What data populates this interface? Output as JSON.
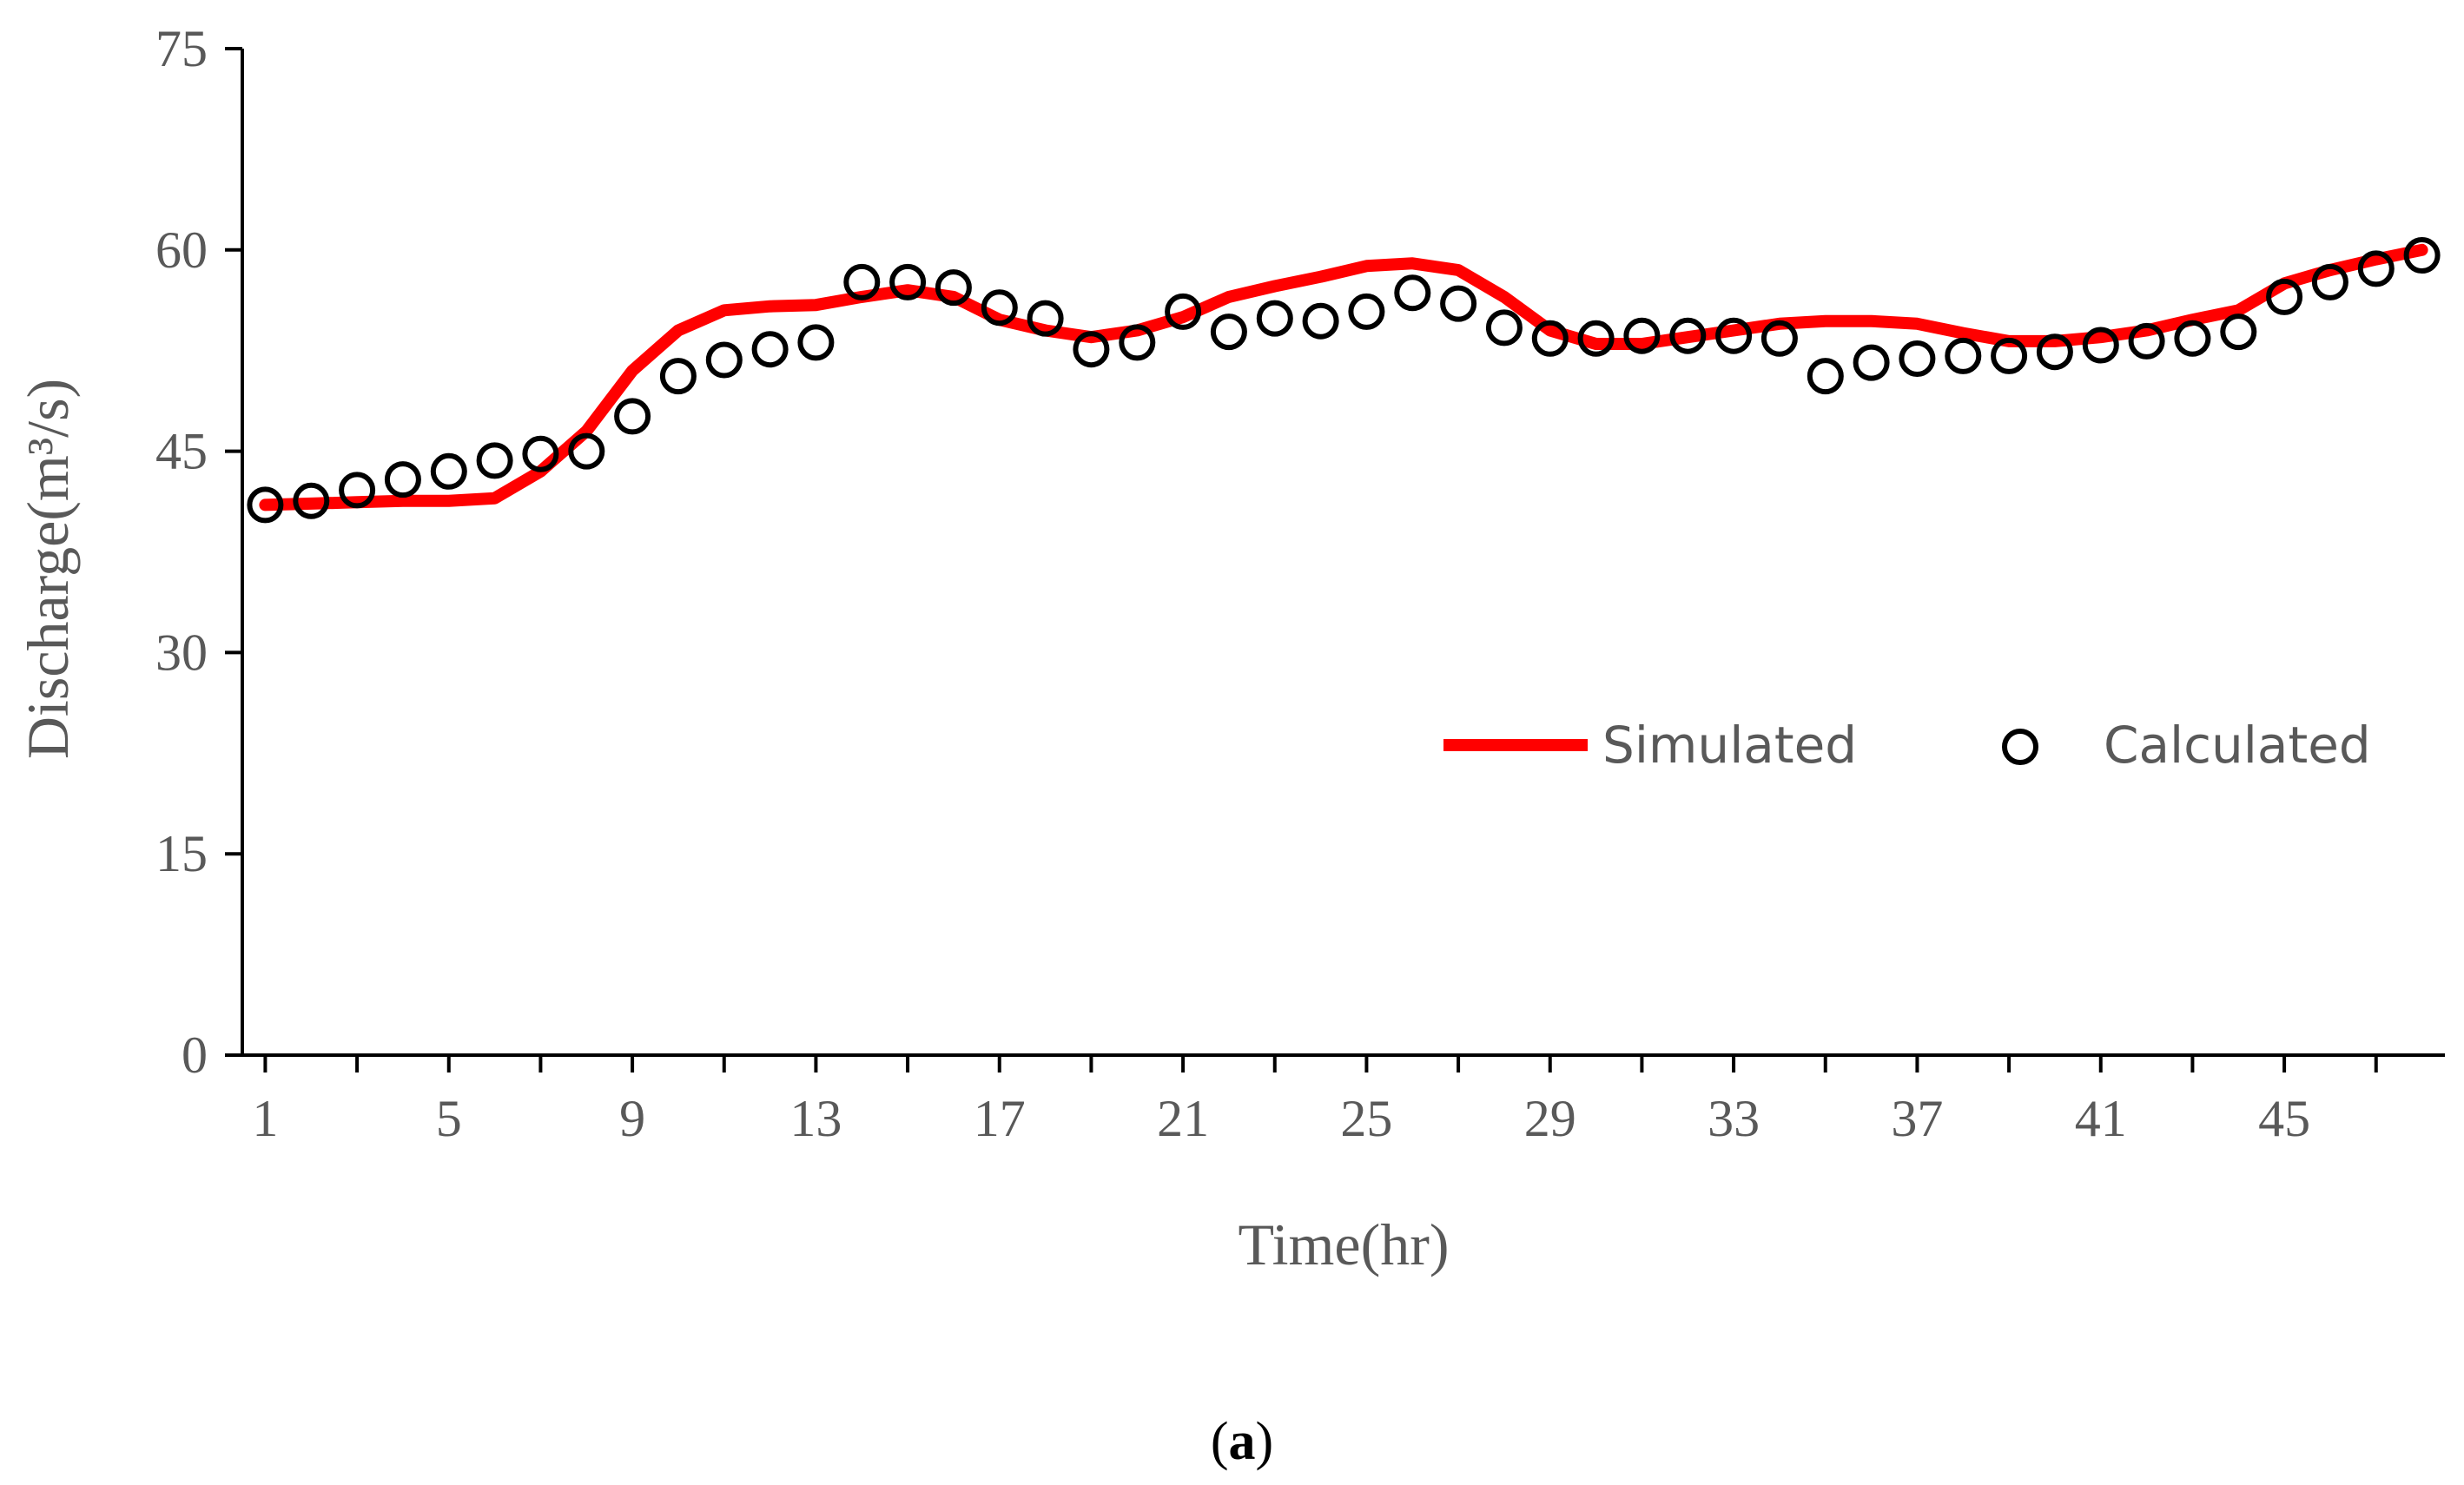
{
  "chart_data": {
    "type": "line",
    "title": "",
    "xlabel": "Time(hr)",
    "ylabel": "Discharge(m³/s)",
    "caption_prefix": "(",
    "caption_letter": "a",
    "caption_suffix": ")",
    "xlim": [
      0.5,
      48.5
    ],
    "ylim": [
      0,
      75
    ],
    "x_ticks": [
      1,
      5,
      9,
      13,
      17,
      21,
      25,
      29,
      33,
      37,
      41,
      45
    ],
    "y_ticks": [
      0,
      15,
      30,
      45,
      60,
      75
    ],
    "grid": false,
    "legend_position": "middle-right",
    "x": [
      1,
      2,
      3,
      4,
      5,
      6,
      7,
      8,
      9,
      10,
      11,
      12,
      13,
      14,
      15,
      16,
      17,
      18,
      19,
      20,
      21,
      22,
      23,
      24,
      25,
      26,
      27,
      28,
      29,
      30,
      31,
      32,
      33,
      34,
      35,
      36,
      37,
      38,
      39,
      40,
      41,
      42,
      43,
      44,
      45,
      46,
      47,
      48
    ],
    "series": [
      {
        "name": "Simulated",
        "style": "line",
        "color": "#ff0000",
        "values": [
          41.0,
          41.1,
          41.2,
          41.3,
          41.3,
          41.5,
          43.5,
          46.5,
          51.0,
          54.0,
          55.5,
          55.8,
          55.9,
          56.5,
          57.0,
          56.5,
          54.8,
          54.0,
          53.5,
          54.0,
          55.0,
          56.5,
          57.3,
          58.0,
          58.8,
          59.0,
          58.5,
          56.5,
          54.0,
          53.0,
          53.0,
          53.5,
          54.0,
          54.5,
          54.7,
          54.7,
          54.5,
          53.8,
          53.2,
          53.2,
          53.5,
          54.0,
          54.8,
          55.5,
          57.5,
          58.5,
          59.3,
          60.0
        ]
      },
      {
        "name": "Calculated",
        "style": "marker",
        "color": "#000000",
        "values": [
          41.0,
          41.3,
          42.1,
          42.9,
          43.5,
          44.3,
          44.8,
          45.0,
          47.6,
          50.6,
          51.8,
          52.6,
          53.1,
          57.6,
          57.6,
          57.2,
          55.7,
          54.9,
          52.6,
          53.1,
          55.4,
          53.9,
          54.9,
          54.7,
          55.4,
          56.8,
          56.0,
          54.2,
          53.4,
          53.4,
          53.6,
          53.6,
          53.6,
          53.4,
          50.6,
          51.6,
          51.9,
          52.1,
          52.1,
          52.4,
          52.9,
          53.2,
          53.4,
          53.9,
          56.5,
          57.6,
          58.6,
          59.6
        ]
      }
    ]
  }
}
